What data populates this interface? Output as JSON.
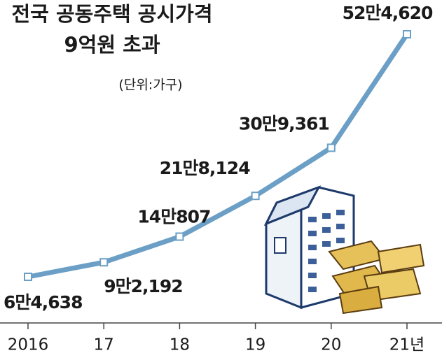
{
  "chart_data": {
    "type": "line",
    "title": [
      "전국 공동주택 공시가격",
      "9억원 초과"
    ],
    "subtitle": "(단위:가구)",
    "categories": [
      "2016",
      "17",
      "18",
      "19",
      "20",
      "21년"
    ],
    "values": [
      64638,
      92192,
      140807,
      218124,
      309361,
      524620
    ],
    "value_labels": [
      "6만4,638",
      "9만2,192",
      "14만807",
      "21만8,124",
      "30만9,361",
      "52만4,620"
    ],
    "color": "#6b9fc6"
  }
}
